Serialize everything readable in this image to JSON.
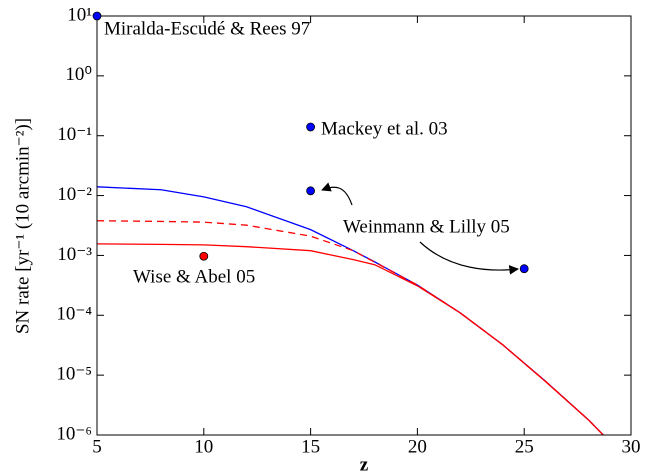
{
  "chart_data": {
    "type": "line",
    "xlabel": "z",
    "ylabel": "SN rate [yr⁻¹ (10 arcmin⁻²)]",
    "xlim": [
      5,
      30
    ],
    "ylim": [
      1e-06,
      10
    ],
    "yscale": "log",
    "xticks": [
      5,
      10,
      15,
      20,
      25,
      30
    ],
    "yticks": [
      {
        "value": 1e-06,
        "label": "10⁻⁶"
      },
      {
        "value": 1e-05,
        "label": "10⁻⁵"
      },
      {
        "value": 0.0001,
        "label": "10⁻⁴"
      },
      {
        "value": 0.001,
        "label": "10⁻³"
      },
      {
        "value": 0.01,
        "label": "10⁻²"
      },
      {
        "value": 0.1,
        "label": "10⁻¹"
      },
      {
        "value": 1,
        "label": "10⁰"
      },
      {
        "value": 10,
        "label": "10¹"
      }
    ],
    "x": [
      5,
      8,
      10,
      12,
      15,
      17,
      18,
      20,
      22,
      24,
      26,
      28,
      28.7
    ],
    "series": [
      {
        "color": "#0000ff",
        "dashed": false,
        "values": [
          0.014,
          0.0125,
          0.0095,
          0.0065,
          0.0027,
          0.0012,
          0.00078,
          0.00032,
          0.00011,
          3.2e-05,
          7.9e-06,
          1.8e-06,
          1e-06
        ]
      },
      {
        "color": "#ff0000",
        "dashed": true,
        "values": [
          0.0038,
          0.0037,
          0.0036,
          0.0032,
          0.0021,
          0.0012,
          0.00077,
          0.00032,
          0.00011,
          3.2e-05,
          7.9e-06,
          1.8e-06,
          1e-06
        ]
      },
      {
        "color": "#ff0000",
        "dashed": false,
        "values": [
          0.00156,
          0.00153,
          0.0015,
          0.0014,
          0.0012,
          0.00085,
          0.0007,
          0.00031,
          0.00011,
          3.2e-05,
          7.8e-06,
          1.8e-06,
          1e-06
        ]
      }
    ],
    "points": {
      "x": [
        5,
        15,
        15,
        25,
        10
      ],
      "y": [
        10,
        0.14,
        0.012,
        0.0006,
        0.00097
      ],
      "colors": [
        "#0000ff",
        "#0000ff",
        "#0000ff",
        "#0000ff",
        "#ff0000"
      ]
    },
    "annotations": [
      "Miralda-Escudé & Rees 97",
      "Mackey et al. 03",
      "Weinmann & Lilly 05",
      "Wise & Abel 05"
    ]
  }
}
